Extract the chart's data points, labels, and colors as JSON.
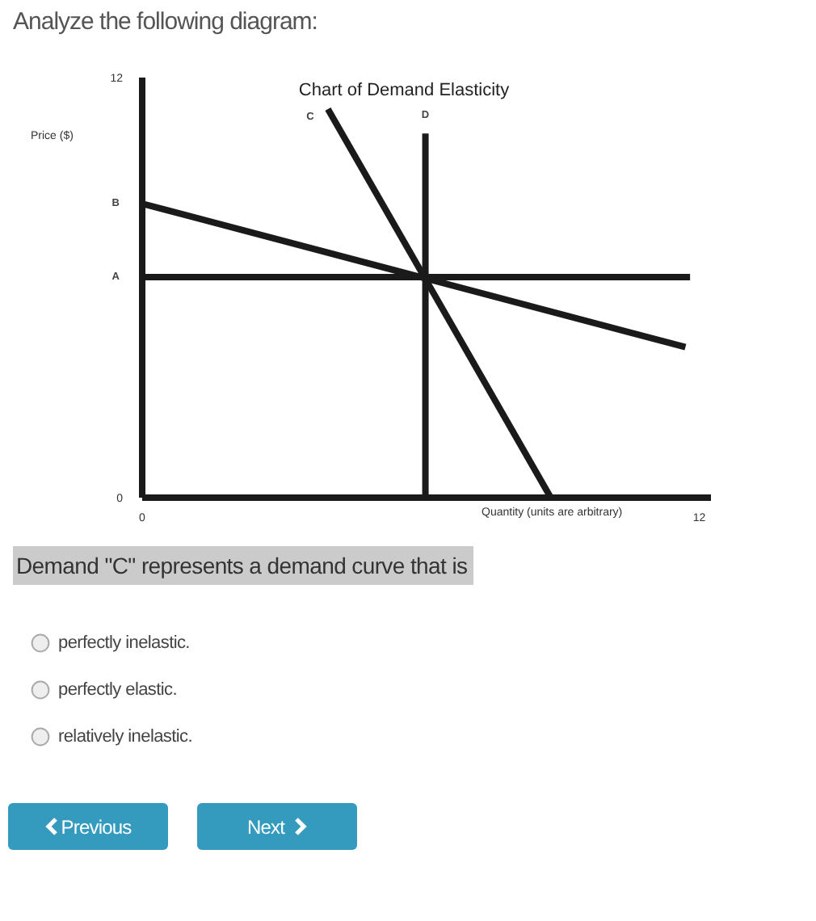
{
  "chart_data": {
    "type": "line",
    "title": "Chart of Demand Elasticity",
    "xlabel": "Quantity (units are arbitrary)",
    "ylabel": "Price ($)",
    "xlim": [
      0,
      12.25
    ],
    "xticks": [
      0,
      12
    ],
    "ylim": [
      0,
      12
    ],
    "yticks": [
      0,
      12
    ],
    "marker": "none",
    "series": [
      {
        "name": "C",
        "color": "#1a1a1a",
        "x": [
          4.0,
          8.8
        ],
        "values": [
          11.1,
          0
        ]
      },
      {
        "name": "D",
        "color": "#1a1a1a",
        "x": [
          6.1,
          6.1
        ],
        "values": [
          10.4,
          0
        ]
      },
      {
        "name": "B",
        "color": "#1a1a1a",
        "x": [
          0,
          11.7
        ],
        "values": [
          8.4,
          4.3
        ]
      },
      {
        "name": "A",
        "color": "#1a1a1a",
        "x": [
          0,
          11.8
        ],
        "values": [
          6.3,
          6.3
        ]
      }
    ],
    "annotations": [
      "Analyze the following diagram:",
      "Demand \"C\" represents a demand curve that is",
      "perfectly inelastic.",
      "perfectly elastic.",
      "relatively inelastic.",
      "Previous",
      "Next"
    ]
  }
}
